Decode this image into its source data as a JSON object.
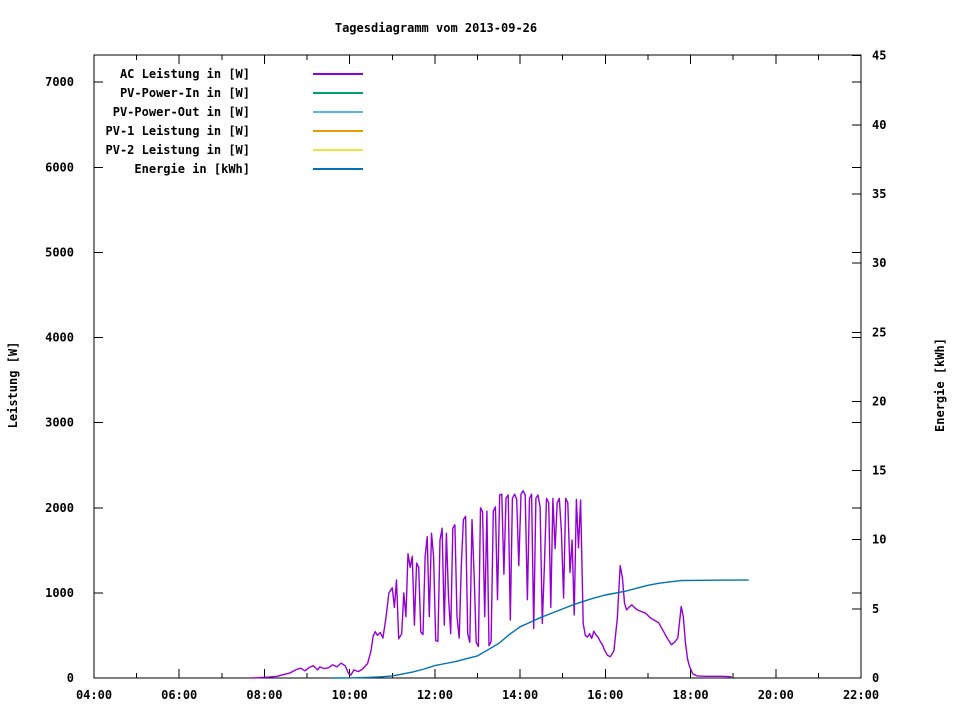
{
  "chart_data": {
    "type": "line",
    "title": "Tagesdiagramm vom 2013-09-26",
    "ylabel": "Leistung [W]",
    "y2label": "Energie [kWh]",
    "background": "#ffffff",
    "axis_color": "#000000",
    "grid": false,
    "legend_position": "top-left-inside",
    "xlim": [
      4,
      22
    ],
    "ylim": [
      0,
      7320
    ],
    "y2lim": [
      0,
      45.05
    ],
    "x_ticks": [
      {
        "h": 4,
        "label": "04:00"
      },
      {
        "h": 6,
        "label": "06:00"
      },
      {
        "h": 8,
        "label": "08:00"
      },
      {
        "h": 10,
        "label": "10:00"
      },
      {
        "h": 12,
        "label": "12:00"
      },
      {
        "h": 14,
        "label": "14:00"
      },
      {
        "h": 16,
        "label": "16:00"
      },
      {
        "h": 18,
        "label": "18:00"
      },
      {
        "h": 20,
        "label": "20:00"
      },
      {
        "h": 22,
        "label": "22:00"
      }
    ],
    "x_minor_ticks": [
      5,
      7,
      9,
      11,
      13,
      15,
      17,
      19,
      21
    ],
    "y_ticks": [
      {
        "v": 0,
        "label": "0"
      },
      {
        "v": 1000,
        "label": "1000"
      },
      {
        "v": 2000,
        "label": "2000"
      },
      {
        "v": 3000,
        "label": "3000"
      },
      {
        "v": 4000,
        "label": "4000"
      },
      {
        "v": 5000,
        "label": "5000"
      },
      {
        "v": 6000,
        "label": "6000"
      },
      {
        "v": 7000,
        "label": "7000"
      }
    ],
    "y2_ticks": [
      {
        "v": 0,
        "label": "0"
      },
      {
        "v": 5,
        "label": "5"
      },
      {
        "v": 10,
        "label": "10"
      },
      {
        "v": 15,
        "label": "15"
      },
      {
        "v": 20,
        "label": "20"
      },
      {
        "v": 25,
        "label": "25"
      },
      {
        "v": 30,
        "label": "30"
      },
      {
        "v": 35,
        "label": "35"
      },
      {
        "v": 40,
        "label": "40"
      },
      {
        "v": 45,
        "label": "45"
      }
    ],
    "series": [
      {
        "id": "ac-leistung",
        "name": "AC Leistung in [W]",
        "color": "#9400d3",
        "axis": "y",
        "points": [
          [
            7.7,
            0
          ],
          [
            7.9,
            5
          ],
          [
            8.1,
            10
          ],
          [
            8.3,
            20
          ],
          [
            8.45,
            40
          ],
          [
            8.6,
            60
          ],
          [
            8.75,
            100
          ],
          [
            8.85,
            115
          ],
          [
            8.95,
            85
          ],
          [
            9.05,
            125
          ],
          [
            9.15,
            145
          ],
          [
            9.25,
            95
          ],
          [
            9.3,
            130
          ],
          [
            9.4,
            110
          ],
          [
            9.5,
            120
          ],
          [
            9.6,
            155
          ],
          [
            9.7,
            130
          ],
          [
            9.8,
            175
          ],
          [
            9.9,
            140
          ],
          [
            9.97,
            55
          ],
          [
            10.03,
            35
          ],
          [
            10.1,
            95
          ],
          [
            10.2,
            75
          ],
          [
            10.3,
            105
          ],
          [
            10.42,
            170
          ],
          [
            10.5,
            320
          ],
          [
            10.55,
            490
          ],
          [
            10.6,
            545
          ],
          [
            10.65,
            500
          ],
          [
            10.72,
            535
          ],
          [
            10.78,
            470
          ],
          [
            10.85,
            700
          ],
          [
            10.92,
            1000
          ],
          [
            11.0,
            1060
          ],
          [
            11.05,
            830
          ],
          [
            11.1,
            1150
          ],
          [
            11.15,
            460
          ],
          [
            11.22,
            520
          ],
          [
            11.27,
            1000
          ],
          [
            11.32,
            720
          ],
          [
            11.37,
            1460
          ],
          [
            11.42,
            1300
          ],
          [
            11.47,
            1430
          ],
          [
            11.52,
            620
          ],
          [
            11.57,
            1350
          ],
          [
            11.62,
            1300
          ],
          [
            11.67,
            540
          ],
          [
            11.72,
            510
          ],
          [
            11.77,
            1420
          ],
          [
            11.82,
            1660
          ],
          [
            11.87,
            720
          ],
          [
            11.92,
            1700
          ],
          [
            11.97,
            1420
          ],
          [
            12.02,
            440
          ],
          [
            12.07,
            430
          ],
          [
            12.12,
            1620
          ],
          [
            12.17,
            1760
          ],
          [
            12.22,
            620
          ],
          [
            12.27,
            1700
          ],
          [
            12.32,
            960
          ],
          [
            12.37,
            520
          ],
          [
            12.42,
            1760
          ],
          [
            12.47,
            1800
          ],
          [
            12.52,
            720
          ],
          [
            12.57,
            470
          ],
          [
            12.62,
            1320
          ],
          [
            12.67,
            1860
          ],
          [
            12.72,
            1900
          ],
          [
            12.77,
            520
          ],
          [
            12.82,
            420
          ],
          [
            12.87,
            1860
          ],
          [
            12.92,
            1220
          ],
          [
            12.97,
            420
          ],
          [
            13.02,
            370
          ],
          [
            13.07,
            2000
          ],
          [
            13.12,
            1950
          ],
          [
            13.17,
            720
          ],
          [
            13.22,
            1960
          ],
          [
            13.27,
            380
          ],
          [
            13.32,
            430
          ],
          [
            13.37,
            1960
          ],
          [
            13.42,
            2010
          ],
          [
            13.47,
            920
          ],
          [
            13.52,
            2150
          ],
          [
            13.57,
            2160
          ],
          [
            13.62,
            1220
          ],
          [
            13.67,
            2110
          ],
          [
            13.72,
            2150
          ],
          [
            13.77,
            680
          ],
          [
            13.82,
            2110
          ],
          [
            13.87,
            2160
          ],
          [
            13.92,
            2100
          ],
          [
            13.97,
            1320
          ],
          [
            14.02,
            2160
          ],
          [
            14.07,
            2200
          ],
          [
            14.12,
            2150
          ],
          [
            14.17,
            920
          ],
          [
            14.22,
            2110
          ],
          [
            14.27,
            2160
          ],
          [
            14.32,
            580
          ],
          [
            14.37,
            2110
          ],
          [
            14.42,
            2150
          ],
          [
            14.47,
            2010
          ],
          [
            14.52,
            640
          ],
          [
            14.57,
            1320
          ],
          [
            14.62,
            2110
          ],
          [
            14.67,
            2060
          ],
          [
            14.72,
            830
          ],
          [
            14.77,
            2110
          ],
          [
            14.82,
            1520
          ],
          [
            14.87,
            2060
          ],
          [
            14.92,
            2110
          ],
          [
            14.97,
            1720
          ],
          [
            15.02,
            940
          ],
          [
            15.07,
            2110
          ],
          [
            15.12,
            2060
          ],
          [
            15.17,
            1240
          ],
          [
            15.22,
            1620
          ],
          [
            15.27,
            740
          ],
          [
            15.32,
            2100
          ],
          [
            15.37,
            1530
          ],
          [
            15.42,
            2090
          ],
          [
            15.48,
            640
          ],
          [
            15.53,
            500
          ],
          [
            15.58,
            480
          ],
          [
            15.63,
            520
          ],
          [
            15.68,
            465
          ],
          [
            15.73,
            550
          ],
          [
            15.78,
            505
          ],
          [
            15.83,
            480
          ],
          [
            15.88,
            430
          ],
          [
            15.93,
            390
          ],
          [
            15.98,
            330
          ],
          [
            16.05,
            265
          ],
          [
            16.12,
            250
          ],
          [
            16.2,
            320
          ],
          [
            16.28,
            700
          ],
          [
            16.35,
            1320
          ],
          [
            16.4,
            1180
          ],
          [
            16.45,
            880
          ],
          [
            16.5,
            800
          ],
          [
            16.55,
            830
          ],
          [
            16.62,
            860
          ],
          [
            16.68,
            830
          ],
          [
            16.75,
            800
          ],
          [
            16.85,
            780
          ],
          [
            16.95,
            760
          ],
          [
            17.05,
            710
          ],
          [
            17.15,
            680
          ],
          [
            17.25,
            650
          ],
          [
            17.35,
            560
          ],
          [
            17.45,
            470
          ],
          [
            17.55,
            390
          ],
          [
            17.62,
            420
          ],
          [
            17.7,
            470
          ],
          [
            17.78,
            840
          ],
          [
            17.83,
            720
          ],
          [
            17.88,
            420
          ],
          [
            17.93,
            220
          ],
          [
            17.98,
            130
          ],
          [
            18.05,
            50
          ],
          [
            18.15,
            25
          ],
          [
            18.35,
            20
          ],
          [
            18.55,
            20
          ],
          [
            18.75,
            20
          ],
          [
            18.95,
            15
          ]
        ]
      },
      {
        "id": "pv-power-in",
        "name": "PV-Power-In in [W]",
        "color": "#009e73",
        "axis": "y",
        "points": []
      },
      {
        "id": "pv-power-out",
        "name": "PV-Power-Out in [W]",
        "color": "#56b4e9",
        "axis": "y",
        "points": []
      },
      {
        "id": "pv1-leistung",
        "name": "PV-1 Leistung in [W]",
        "color": "#e69f00",
        "axis": "y",
        "points": []
      },
      {
        "id": "pv2-leistung",
        "name": "PV-2 Leistung in [W]",
        "color": "#f0e442",
        "axis": "y",
        "points": []
      },
      {
        "id": "energie",
        "name": "Energie in [kWh]",
        "color": "#0072b2",
        "axis": "y2",
        "points": [
          [
            9.6,
            0
          ],
          [
            10.0,
            0.01
          ],
          [
            10.4,
            0.04
          ],
          [
            10.7,
            0.08
          ],
          [
            11.0,
            0.15
          ],
          [
            11.25,
            0.3
          ],
          [
            11.5,
            0.45
          ],
          [
            11.75,
            0.65
          ],
          [
            12.0,
            0.9
          ],
          [
            12.25,
            1.05
          ],
          [
            12.5,
            1.2
          ],
          [
            12.75,
            1.4
          ],
          [
            13.0,
            1.6
          ],
          [
            13.25,
            2.05
          ],
          [
            13.5,
            2.5
          ],
          [
            13.75,
            3.15
          ],
          [
            14.0,
            3.7
          ],
          [
            14.25,
            4.05
          ],
          [
            14.5,
            4.4
          ],
          [
            14.75,
            4.7
          ],
          [
            15.0,
            5.0
          ],
          [
            15.25,
            5.3
          ],
          [
            15.5,
            5.55
          ],
          [
            15.75,
            5.8
          ],
          [
            16.0,
            6.0
          ],
          [
            16.25,
            6.15
          ],
          [
            16.5,
            6.3
          ],
          [
            16.75,
            6.5
          ],
          [
            17.0,
            6.7
          ],
          [
            17.25,
            6.85
          ],
          [
            17.5,
            6.95
          ],
          [
            17.7,
            7.02
          ],
          [
            17.8,
            7.05
          ],
          [
            18.0,
            7.06
          ],
          [
            18.5,
            7.07
          ],
          [
            19.0,
            7.08
          ],
          [
            19.35,
            7.08
          ]
        ]
      }
    ]
  }
}
